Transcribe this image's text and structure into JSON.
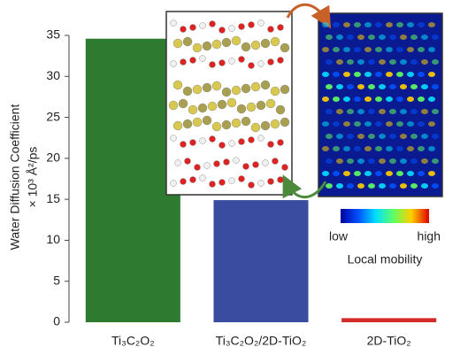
{
  "chart_data": {
    "type": "bar",
    "ylabel": [
      "Water Diffusion Coefficient",
      "× 10³ Å²/ps"
    ],
    "categories": [
      "Ti₃C₂O₂",
      "Ti₃C₂O₂/2D-TiO₂",
      "2D-TiO₂"
    ],
    "values": [
      34.6,
      14.9,
      0.5
    ],
    "colors": [
      "#2e7a30",
      "#3a4c9f",
      "#d32a2a"
    ],
    "ylim": [
      0,
      35
    ],
    "yticks": [
      0,
      5,
      10,
      15,
      20,
      25,
      30,
      35
    ],
    "grid": false,
    "colorbar": {
      "low": "low",
      "high": "high",
      "label": "Local mobility"
    }
  }
}
